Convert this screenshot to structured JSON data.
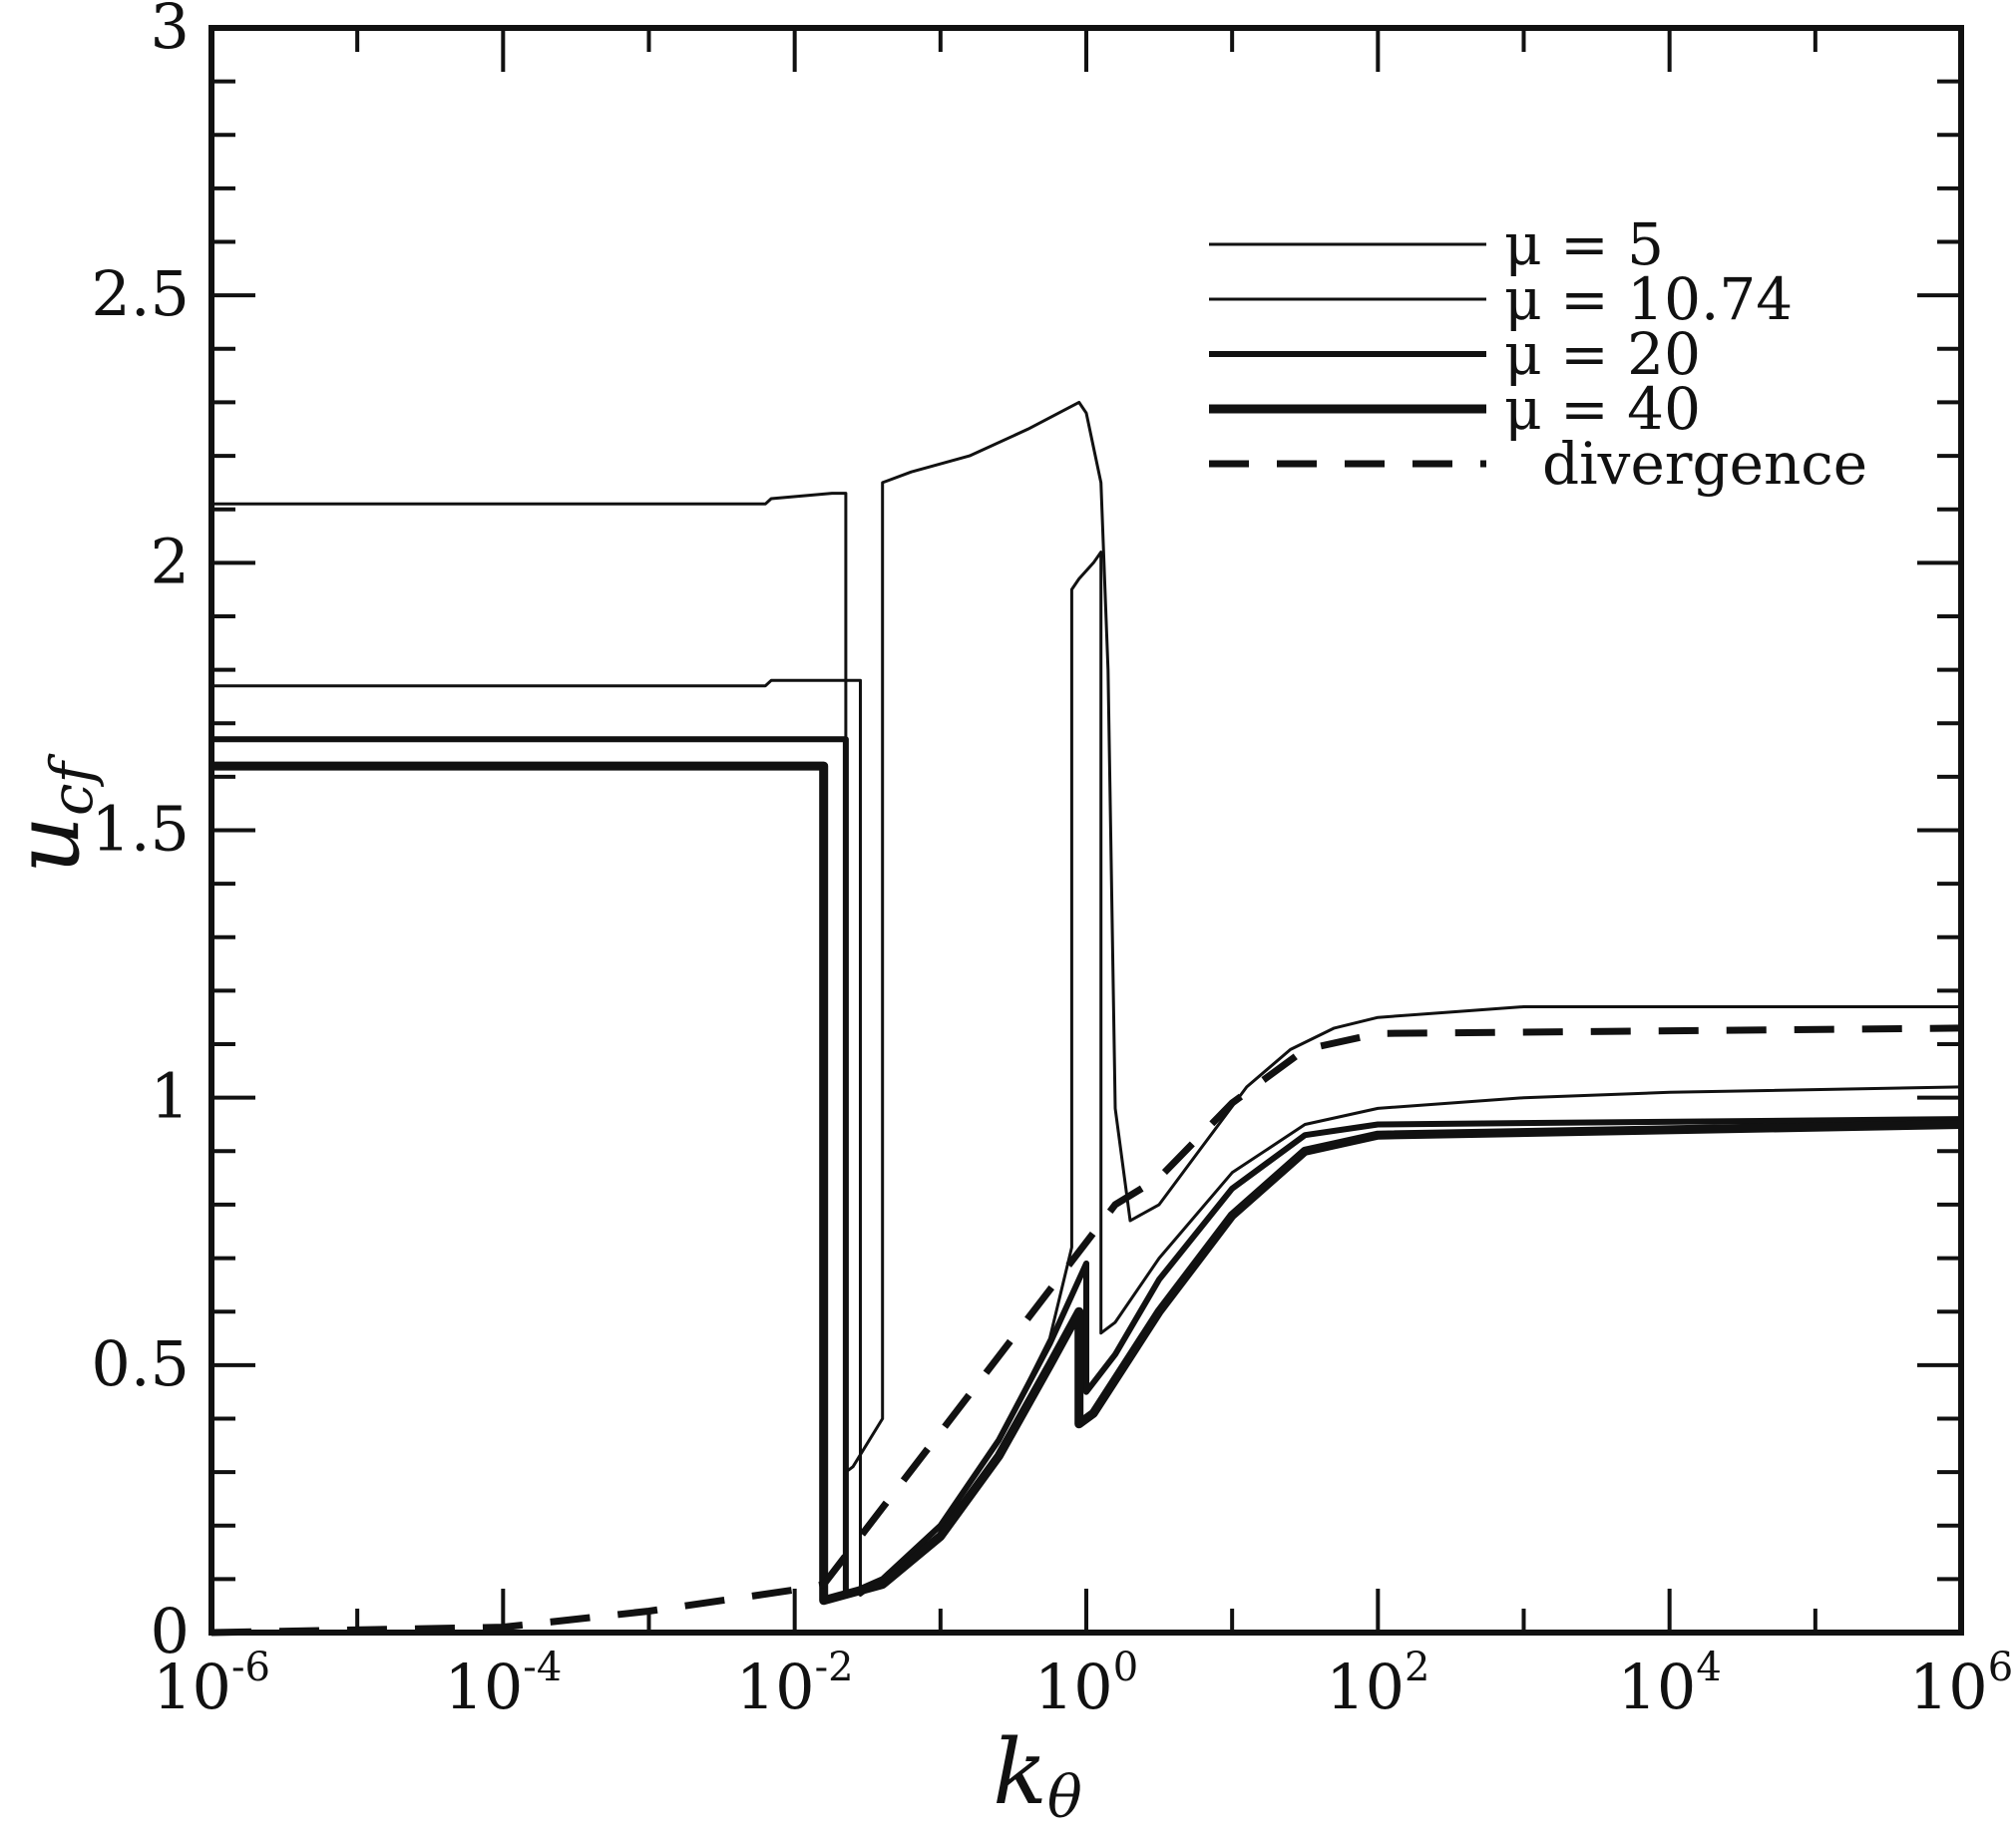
{
  "chart_data": {
    "type": "line",
    "xscale": "log",
    "xlim": [
      1e-06,
      1000000.0
    ],
    "ylim": [
      0,
      3
    ],
    "xlabel": "k",
    "xlabel_sub": "θ",
    "ylabel": "u",
    "ylabel_sub": "cf",
    "grid": false,
    "legend_position": "top-right",
    "x_ticks": [
      {
        "base": "10",
        "exp": "-6",
        "value": 1e-06
      },
      {
        "base": "10",
        "exp": "-4",
        "value": 0.0001
      },
      {
        "base": "10",
        "exp": "-2",
        "value": 0.01
      },
      {
        "base": "10",
        "exp": "0",
        "value": 1
      },
      {
        "base": "10",
        "exp": "2",
        "value": 100
      },
      {
        "base": "10",
        "exp": "4",
        "value": 10000
      },
      {
        "base": "10",
        "exp": "6",
        "value": 1000000
      }
    ],
    "y_ticks": [
      {
        "label": "0",
        "value": 0
      },
      {
        "label": "0.5",
        "value": 0.5
      },
      {
        "label": "1",
        "value": 1
      },
      {
        "label": "1.5",
        "value": 1.5
      },
      {
        "label": "2",
        "value": 2
      },
      {
        "label": "2.5",
        "value": 2.5
      },
      {
        "label": "3",
        "value": 3
      }
    ],
    "series": [
      {
        "name": "μ = 5",
        "width": 3,
        "dash": "",
        "points": [
          [
            1e-06,
            2.11
          ],
          [
            0.0063,
            2.11
          ],
          [
            0.0069,
            2.12
          ],
          [
            0.018,
            2.13
          ],
          [
            0.0224,
            2.13
          ],
          [
            0.0224,
            0.3
          ],
          [
            0.0251,
            0.31
          ],
          [
            0.04,
            0.4
          ],
          [
            0.04,
            2.15
          ],
          [
            0.063,
            2.17
          ],
          [
            0.158,
            2.2
          ],
          [
            0.398,
            2.25
          ],
          [
            0.891,
            2.3
          ],
          [
            1.0,
            2.28
          ],
          [
            1.26,
            2.15
          ],
          [
            1.41,
            1.8
          ],
          [
            1.58,
            0.98
          ],
          [
            2.0,
            0.77
          ],
          [
            3.16,
            0.8
          ],
          [
            6.3,
            0.91
          ],
          [
            12.6,
            1.02
          ],
          [
            25.1,
            1.09
          ],
          [
            50.1,
            1.13
          ],
          [
            100,
            1.15
          ],
          [
            1000,
            1.17
          ],
          [
            1000000.0,
            1.17
          ]
        ]
      },
      {
        "name": "μ = 10.74",
        "width": 3,
        "dash": "",
        "points": [
          [
            1e-06,
            1.77
          ],
          [
            0.0063,
            1.77
          ],
          [
            0.0069,
            1.78
          ],
          [
            0.0282,
            1.78
          ],
          [
            0.0282,
            0.07
          ],
          [
            0.04,
            0.1
          ],
          [
            0.1,
            0.2
          ],
          [
            0.251,
            0.36
          ],
          [
            0.562,
            0.55
          ],
          [
            0.794,
            0.72
          ],
          [
            0.794,
            1.95
          ],
          [
            0.891,
            1.97
          ],
          [
            1.12,
            2.0
          ],
          [
            1.26,
            2.02
          ],
          [
            1.26,
            0.56
          ],
          [
            1.58,
            0.58
          ],
          [
            3.16,
            0.7
          ],
          [
            10,
            0.86
          ],
          [
            31.6,
            0.95
          ],
          [
            100,
            0.98
          ],
          [
            1000,
            1.0
          ],
          [
            10000,
            1.01
          ],
          [
            1000000.0,
            1.02
          ]
        ]
      },
      {
        "name": "μ = 20",
        "width": 6,
        "dash": "",
        "points": [
          [
            1e-06,
            1.67
          ],
          [
            0.0224,
            1.67
          ],
          [
            0.0224,
            0.07
          ],
          [
            0.04,
            0.1
          ],
          [
            0.1,
            0.2
          ],
          [
            0.251,
            0.36
          ],
          [
            0.562,
            0.54
          ],
          [
            1.0,
            0.69
          ],
          [
            1.0,
            0.45
          ],
          [
            1.58,
            0.52
          ],
          [
            3.16,
            0.66
          ],
          [
            10,
            0.83
          ],
          [
            31.6,
            0.93
          ],
          [
            100,
            0.95
          ],
          [
            1000000.0,
            0.96
          ]
        ]
      },
      {
        "name": "μ = 40",
        "width": 9,
        "dash": "",
        "points": [
          [
            1e-06,
            1.62
          ],
          [
            0.0158,
            1.62
          ],
          [
            0.0158,
            0.06
          ],
          [
            0.04,
            0.09
          ],
          [
            0.1,
            0.18
          ],
          [
            0.251,
            0.33
          ],
          [
            0.562,
            0.5
          ],
          [
            0.891,
            0.6
          ],
          [
            0.891,
            0.39
          ],
          [
            1.12,
            0.41
          ],
          [
            3.16,
            0.6
          ],
          [
            10,
            0.78
          ],
          [
            31.6,
            0.9
          ],
          [
            100,
            0.93
          ],
          [
            1000000.0,
            0.95
          ]
        ]
      },
      {
        "name": "divergence",
        "width": 7,
        "dash": "40,28",
        "points": [
          [
            1e-06,
            0.0
          ],
          [
            0.0001,
            0.01
          ],
          [
            0.001,
            0.04
          ],
          [
            0.01,
            0.08
          ],
          [
            0.0158,
            0.09
          ],
          [
            1.58,
            0.8
          ],
          [
            3.16,
            0.85
          ],
          [
            10,
            0.99
          ],
          [
            31.6,
            1.09
          ],
          [
            100,
            1.12
          ],
          [
            1000000.0,
            1.13
          ]
        ]
      }
    ]
  }
}
